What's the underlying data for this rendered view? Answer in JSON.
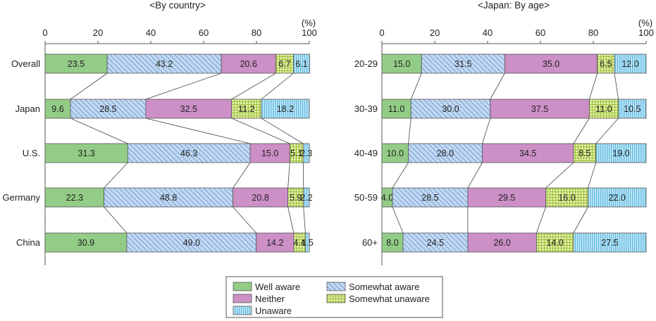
{
  "colors": {
    "well_aware": "#93cc86",
    "somewhat_aware": "#c2d8f2",
    "neither": "#cc8fc6",
    "somewhat_unaware": "#dcec9a",
    "unaware": "#b2e3f4"
  },
  "legend": [
    "Well aware",
    "Somewhat aware",
    "Neither",
    "Somewhat unaware",
    "Unaware"
  ],
  "chart_data": [
    {
      "type": "bar",
      "orientation": "horizontal-stacked-100",
      "title": "<By country>",
      "unit_label": "(%)",
      "xlim": [
        0,
        100
      ],
      "xticks": [
        0,
        20,
        40,
        60,
        80,
        100
      ],
      "categories": [
        "Overall",
        "Japan",
        "U.S.",
        "Germany",
        "China"
      ],
      "series": [
        {
          "name": "Well aware",
          "values": [
            23.5,
            9.6,
            31.3,
            22.3,
            30.9
          ]
        },
        {
          "name": "Somewhat aware",
          "values": [
            43.2,
            28.5,
            46.3,
            48.8,
            49.0
          ]
        },
        {
          "name": "Neither",
          "values": [
            20.6,
            32.5,
            15.0,
            20.8,
            14.2
          ]
        },
        {
          "name": "Somewhat unaware",
          "values": [
            6.7,
            11.2,
            5.1,
            5.9,
            4.4
          ]
        },
        {
          "name": "Unaware",
          "values": [
            6.1,
            18.2,
            2.3,
            2.2,
            1.5
          ]
        }
      ],
      "labels": [
        [
          "23.5",
          "43.2",
          "20.6",
          "6.7",
          "6.1"
        ],
        [
          "9.6",
          "28.5",
          "32.5",
          "11.2",
          "18.2"
        ],
        [
          "31.3",
          "46.3",
          "15.0",
          "5.1",
          "2.3"
        ],
        [
          "22.3",
          "48.8",
          "20.8",
          "5.9",
          "2.2"
        ],
        [
          "30.9",
          "49.0",
          "14.2",
          "4.4",
          "1.5"
        ]
      ],
      "grid": false,
      "legend_position": "bottom-center"
    },
    {
      "type": "bar",
      "orientation": "horizontal-stacked-100",
      "title": "<Japan: By age>",
      "unit_label": "(%)",
      "xlim": [
        0,
        100
      ],
      "xticks": [
        0,
        20,
        40,
        60,
        80,
        100
      ],
      "categories": [
        "20-29",
        "30-39",
        "40-49",
        "50-59",
        "60+"
      ],
      "series": [
        {
          "name": "Well aware",
          "values": [
            15.0,
            11.0,
            10.0,
            4.0,
            8.0
          ]
        },
        {
          "name": "Somewhat aware",
          "values": [
            31.5,
            30.0,
            28.0,
            28.5,
            24.5
          ]
        },
        {
          "name": "Neither",
          "values": [
            35.0,
            37.5,
            34.5,
            29.5,
            26.0
          ]
        },
        {
          "name": "Somewhat unaware",
          "values": [
            6.5,
            11.0,
            8.5,
            16.0,
            14.0
          ]
        },
        {
          "name": "Unaware",
          "values": [
            12.0,
            10.5,
            19.0,
            22.0,
            27.5
          ]
        }
      ],
      "labels": [
        [
          "15.0",
          "31.5",
          "35.0",
          "6.5",
          "12.0"
        ],
        [
          "11.0",
          "30.0",
          "37.5",
          "11.0",
          "10.5"
        ],
        [
          "10.0",
          "28.0",
          "34.5",
          "8.5",
          "19.0"
        ],
        [
          "4.0",
          "28.5",
          "29.5",
          "16.0",
          "22.0"
        ],
        [
          "8.0",
          "24.5",
          "26.0",
          "14.0",
          "27.5"
        ]
      ],
      "grid": false,
      "legend_position": "bottom-center"
    }
  ]
}
